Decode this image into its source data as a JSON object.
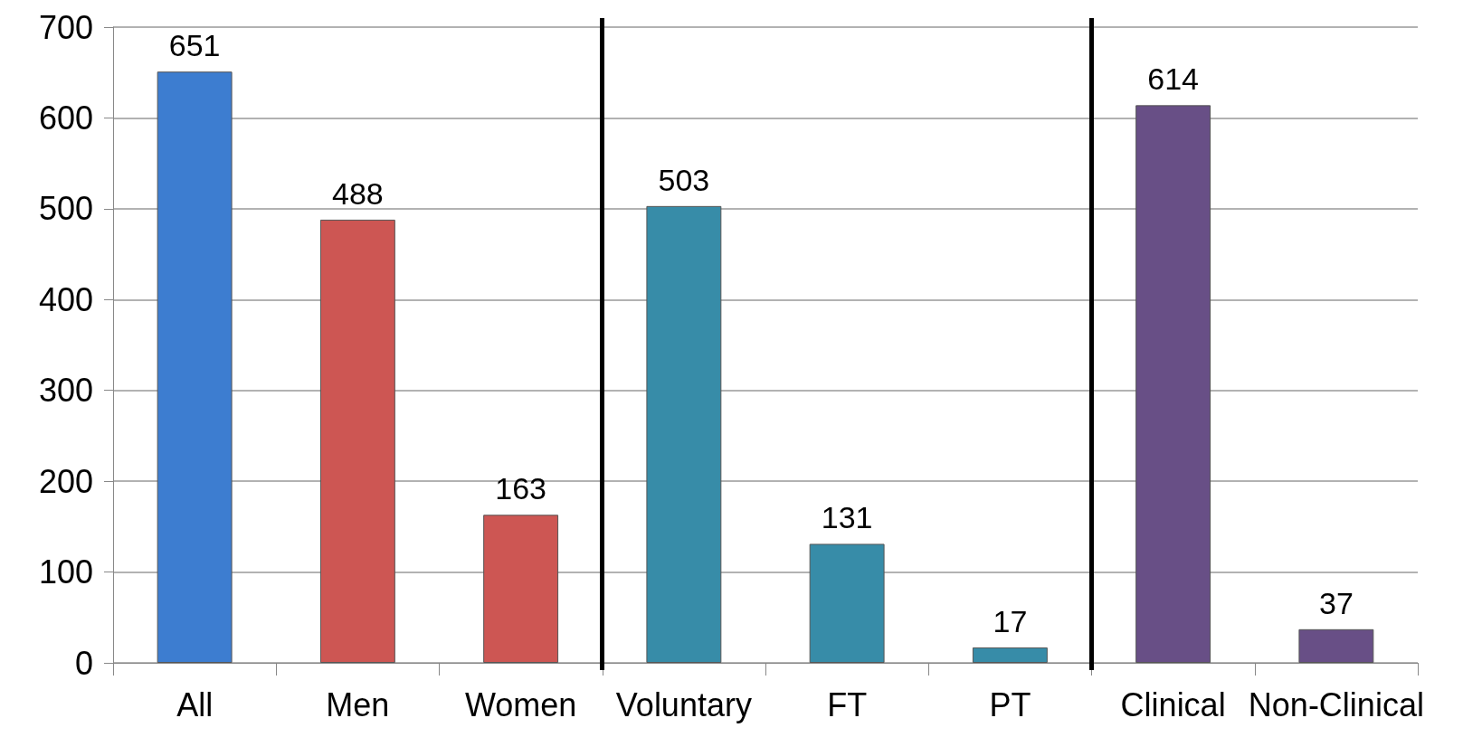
{
  "chart_data": {
    "type": "bar",
    "categories": [
      "All",
      "Men",
      "Women",
      "Voluntary",
      "FT",
      "PT",
      "Clinical",
      "Non-Clinical"
    ],
    "values": [
      651,
      488,
      163,
      503,
      131,
      17,
      614,
      37
    ],
    "colors": [
      "#3d7dd0",
      "#cd5653",
      "#cd5653",
      "#378ca8",
      "#378ca8",
      "#378ca8",
      "#684f86",
      "#684f86"
    ],
    "ylim": [
      0,
      700
    ],
    "yticks": [
      0,
      100,
      200,
      300,
      400,
      500,
      600,
      700
    ],
    "grid": "y",
    "data_labels": true
  }
}
